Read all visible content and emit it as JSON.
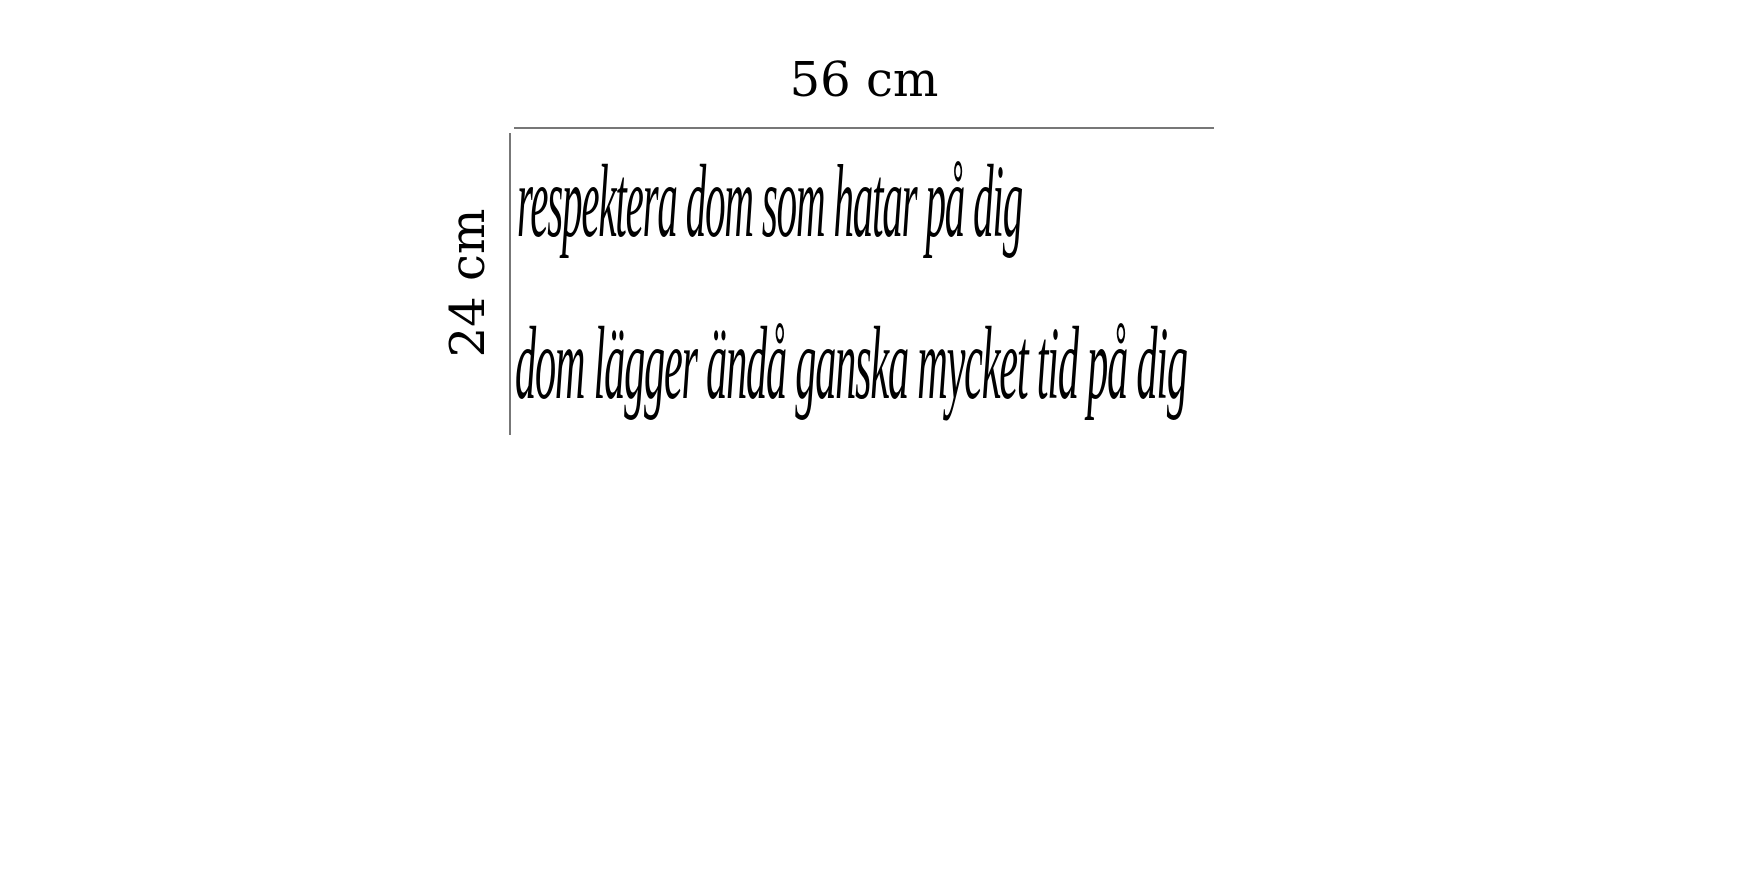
{
  "dimensions": {
    "width_label": "56 cm",
    "height_label": "24 cm"
  },
  "decal_text": {
    "lines": [
      "respektera dom som hatar på dig",
      "dom lägger ändå ganska mycket tid på dig"
    ]
  },
  "colors": {
    "text": "#000000",
    "dimension_line": "#777777",
    "background": "#ffffff"
  }
}
